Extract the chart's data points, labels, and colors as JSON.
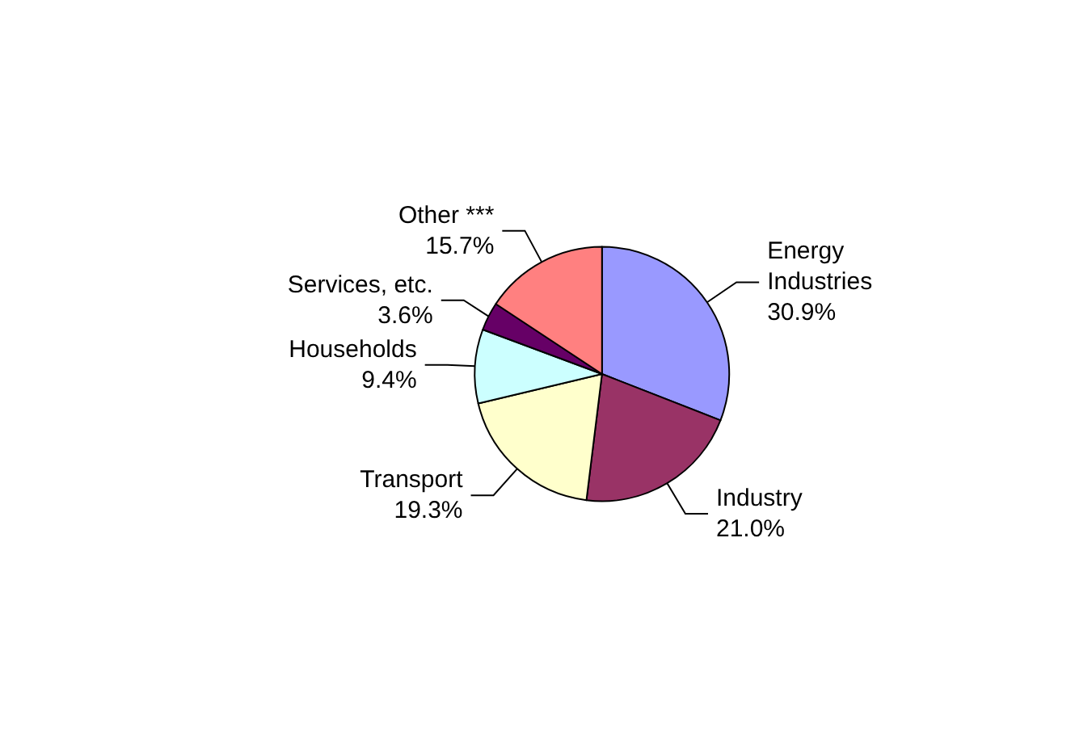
{
  "chart_data": {
    "type": "pie",
    "categories": [
      "Energy Industries",
      "Industry",
      "Transport",
      "Households",
      "Services, etc.",
      "Other ***"
    ],
    "values": [
      30.9,
      21.0,
      19.3,
      9.4,
      3.6,
      15.7
    ],
    "value_labels": [
      "30.9%",
      "21.0%",
      "19.3%",
      "9.4%",
      "3.6%",
      "15.7%"
    ],
    "colors": [
      "#9999ff",
      "#993366",
      "#ffffcc",
      "#ccffff",
      "#660066",
      "#ff8080"
    ],
    "legend": false
  }
}
